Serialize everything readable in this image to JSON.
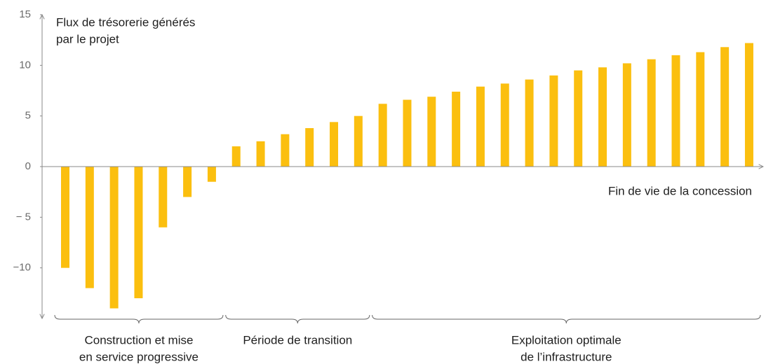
{
  "chart_data": {
    "type": "bar",
    "y_label": [
      "Flux de trésorerie générés",
      "par le projet"
    ],
    "annotation": "Fin de vie de la concession",
    "values": [
      -10,
      -12,
      -14,
      -13,
      -6,
      -3,
      -1.5,
      2,
      2.5,
      3.2,
      3.8,
      4.4,
      5,
      6.2,
      6.6,
      6.9,
      7.4,
      7.9,
      8.2,
      8.6,
      9,
      9.5,
      9.8,
      10.2,
      10.6,
      11,
      11.3,
      11.8,
      12.2
    ],
    "color": "#fbbf0f",
    "ylim": [
      -15,
      15
    ],
    "yticks": [
      {
        "value": -10,
        "label": "−10"
      },
      {
        "value": -5,
        "label": "− 5"
      },
      0,
      5,
      10,
      15
    ],
    "phases": [
      {
        "label": [
          "Construction et mise",
          "en service progressive"
        ],
        "start": 0,
        "end": 6
      },
      {
        "label": [
          "Période de transition"
        ],
        "start": 7,
        "end": 12
      },
      {
        "label": [
          "Exploitation optimale",
          "de l’infrastructure"
        ],
        "start": 13,
        "end": 28
      }
    ]
  }
}
